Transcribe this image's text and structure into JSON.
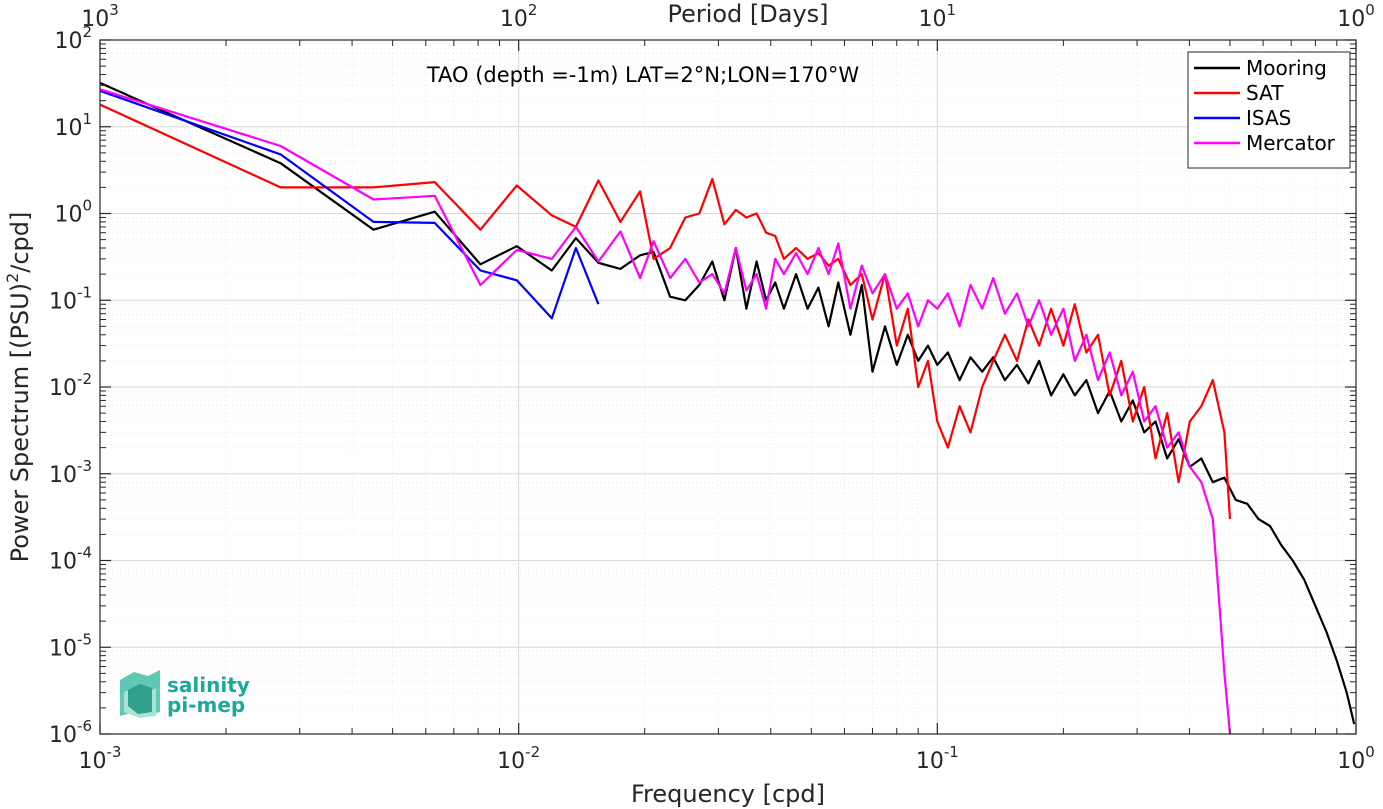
{
  "chart_data": {
    "type": "line",
    "title": "TAO (depth =-1m) LAT=2°N;LON=170°W",
    "xlabel": "Frequency [cpd]",
    "ylabel": "Power Spectrum [(PSU)²/cpd]",
    "top_xlabel": "Period [Days]",
    "xscale": "log",
    "yscale": "log",
    "xlim": [
      0.001,
      1
    ],
    "ylim": [
      1e-06,
      100
    ],
    "x_ticks": [
      {
        "base": "10",
        "exp": "-3",
        "value": 0.001
      },
      {
        "base": "10",
        "exp": "-2",
        "value": 0.01
      },
      {
        "base": "10",
        "exp": "-1",
        "value": 0.1
      },
      {
        "base": "10",
        "exp": "0",
        "value": 1
      }
    ],
    "y_ticks": [
      {
        "base": "10",
        "exp": "-6",
        "value": 1e-06
      },
      {
        "base": "10",
        "exp": "-5",
        "value": 1e-05
      },
      {
        "base": "10",
        "exp": "-4",
        "value": 0.0001
      },
      {
        "base": "10",
        "exp": "-3",
        "value": 0.001
      },
      {
        "base": "10",
        "exp": "-2",
        "value": 0.01
      },
      {
        "base": "10",
        "exp": "-1",
        "value": 0.1
      },
      {
        "base": "10",
        "exp": "0",
        "value": 1
      },
      {
        "base": "10",
        "exp": "1",
        "value": 10
      },
      {
        "base": "10",
        "exp": "2",
        "value": 100
      }
    ],
    "top_ticks": [
      {
        "base": "10",
        "exp": "3",
        "value": 1000
      },
      {
        "base": "10",
        "exp": "2",
        "value": 100
      },
      {
        "base": "10",
        "exp": "1",
        "value": 10
      },
      {
        "base": "10",
        "exp": "0",
        "value": 1
      }
    ],
    "grid": true,
    "legend_position": "top-right",
    "series": [
      {
        "name": "Mooring",
        "color": "#000000",
        "x": [
          0.001,
          0.0027,
          0.0045,
          0.0063,
          0.0081,
          0.0099,
          0.012,
          0.0137,
          0.0155,
          0.0175,
          0.0195,
          0.021,
          0.023,
          0.025,
          0.027,
          0.029,
          0.031,
          0.033,
          0.035,
          0.037,
          0.039,
          0.041,
          0.043,
          0.046,
          0.049,
          0.052,
          0.055,
          0.058,
          0.062,
          0.066,
          0.07,
          0.075,
          0.08,
          0.085,
          0.09,
          0.095,
          0.1,
          0.106,
          0.113,
          0.12,
          0.128,
          0.136,
          0.145,
          0.155,
          0.165,
          0.175,
          0.187,
          0.2,
          0.213,
          0.227,
          0.242,
          0.258,
          0.275,
          0.293,
          0.312,
          0.332,
          0.354,
          0.377,
          0.401,
          0.427,
          0.455,
          0.485,
          0.516,
          0.55,
          0.585,
          0.623,
          0.663,
          0.706,
          0.752,
          0.8,
          0.85,
          0.9,
          0.95,
          0.99
        ],
        "y": [
          32,
          3.8,
          0.65,
          1.05,
          0.26,
          0.42,
          0.22,
          0.52,
          0.27,
          0.23,
          0.33,
          0.36,
          0.11,
          0.1,
          0.15,
          0.28,
          0.1,
          0.4,
          0.08,
          0.28,
          0.1,
          0.16,
          0.08,
          0.2,
          0.08,
          0.14,
          0.05,
          0.16,
          0.04,
          0.15,
          0.015,
          0.05,
          0.018,
          0.04,
          0.02,
          0.03,
          0.018,
          0.025,
          0.012,
          0.022,
          0.015,
          0.022,
          0.012,
          0.018,
          0.011,
          0.02,
          0.008,
          0.014,
          0.008,
          0.012,
          0.005,
          0.009,
          0.004,
          0.007,
          0.003,
          0.004,
          0.0015,
          0.0025,
          0.0012,
          0.0015,
          0.0008,
          0.0009,
          0.0005,
          0.00045,
          0.0003,
          0.00025,
          0.00015,
          0.0001,
          6e-05,
          3e-05,
          1.5e-05,
          7e-06,
          3e-06,
          1.3e-06
        ]
      },
      {
        "name": "SAT",
        "color": "#ff0000",
        "x": [
          0.001,
          0.0027,
          0.0045,
          0.0063,
          0.0081,
          0.0099,
          0.012,
          0.0137,
          0.0155,
          0.0175,
          0.0195,
          0.021,
          0.023,
          0.025,
          0.027,
          0.029,
          0.031,
          0.033,
          0.035,
          0.037,
          0.039,
          0.041,
          0.043,
          0.046,
          0.049,
          0.052,
          0.055,
          0.058,
          0.062,
          0.066,
          0.07,
          0.075,
          0.08,
          0.085,
          0.09,
          0.095,
          0.1,
          0.106,
          0.113,
          0.12,
          0.128,
          0.136,
          0.145,
          0.155,
          0.165,
          0.175,
          0.187,
          0.2,
          0.213,
          0.227,
          0.242,
          0.258,
          0.275,
          0.293,
          0.312,
          0.332,
          0.354,
          0.377,
          0.401,
          0.427,
          0.455,
          0.485,
          0.5
        ],
        "y": [
          18,
          2.0,
          2.0,
          2.3,
          0.65,
          2.1,
          0.95,
          0.7,
          2.4,
          0.8,
          1.8,
          0.3,
          0.4,
          0.9,
          1.0,
          2.5,
          0.75,
          1.1,
          0.9,
          1.0,
          0.6,
          0.55,
          0.3,
          0.4,
          0.3,
          0.35,
          0.25,
          0.3,
          0.15,
          0.2,
          0.06,
          0.2,
          0.03,
          0.08,
          0.01,
          0.02,
          0.004,
          0.002,
          0.006,
          0.003,
          0.01,
          0.02,
          0.04,
          0.02,
          0.06,
          0.03,
          0.08,
          0.03,
          0.09,
          0.025,
          0.04,
          0.008,
          0.02,
          0.004,
          0.01,
          0.0015,
          0.005,
          0.0008,
          0.004,
          0.006,
          0.012,
          0.003,
          0.0003
        ]
      },
      {
        "name": "ISAS",
        "color": "#0000ff",
        "x": [
          0.001,
          0.0027,
          0.0045,
          0.0063,
          0.0081,
          0.0099,
          0.012,
          0.0137,
          0.0155
        ],
        "y": [
          26,
          4.8,
          0.8,
          0.78,
          0.22,
          0.17,
          0.062,
          0.4,
          0.09
        ]
      },
      {
        "name": "Mercator",
        "color": "#ff00ff",
        "x": [
          0.001,
          0.0027,
          0.0045,
          0.0063,
          0.0081,
          0.0099,
          0.012,
          0.0137,
          0.0155,
          0.0175,
          0.0195,
          0.021,
          0.023,
          0.025,
          0.027,
          0.029,
          0.031,
          0.033,
          0.035,
          0.037,
          0.039,
          0.041,
          0.043,
          0.046,
          0.049,
          0.052,
          0.055,
          0.058,
          0.062,
          0.066,
          0.07,
          0.075,
          0.08,
          0.085,
          0.09,
          0.095,
          0.1,
          0.106,
          0.113,
          0.12,
          0.128,
          0.136,
          0.145,
          0.155,
          0.165,
          0.175,
          0.187,
          0.2,
          0.213,
          0.227,
          0.242,
          0.258,
          0.275,
          0.293,
          0.312,
          0.332,
          0.354,
          0.377,
          0.401,
          0.427,
          0.455,
          0.47,
          0.485,
          0.5
        ],
        "y": [
          27,
          6.0,
          1.45,
          1.6,
          0.15,
          0.38,
          0.3,
          0.7,
          0.28,
          0.62,
          0.18,
          0.48,
          0.18,
          0.3,
          0.16,
          0.2,
          0.12,
          0.4,
          0.13,
          0.2,
          0.08,
          0.3,
          0.2,
          0.35,
          0.2,
          0.4,
          0.2,
          0.45,
          0.08,
          0.25,
          0.12,
          0.2,
          0.08,
          0.12,
          0.05,
          0.1,
          0.08,
          0.12,
          0.05,
          0.15,
          0.08,
          0.18,
          0.07,
          0.12,
          0.05,
          0.1,
          0.04,
          0.08,
          0.02,
          0.04,
          0.012,
          0.025,
          0.008,
          0.015,
          0.004,
          0.006,
          0.002,
          0.003,
          0.0012,
          0.0008,
          0.0003,
          4e-05,
          5e-06,
          9e-07
        ]
      }
    ]
  },
  "logo": {
    "line1": "salinity",
    "line2": "pi-mep"
  },
  "colors": {
    "axis": "#262626",
    "grid_major": "#d8d8d8",
    "grid_minor": "#ebebeb",
    "logo": "#1aa99a"
  }
}
